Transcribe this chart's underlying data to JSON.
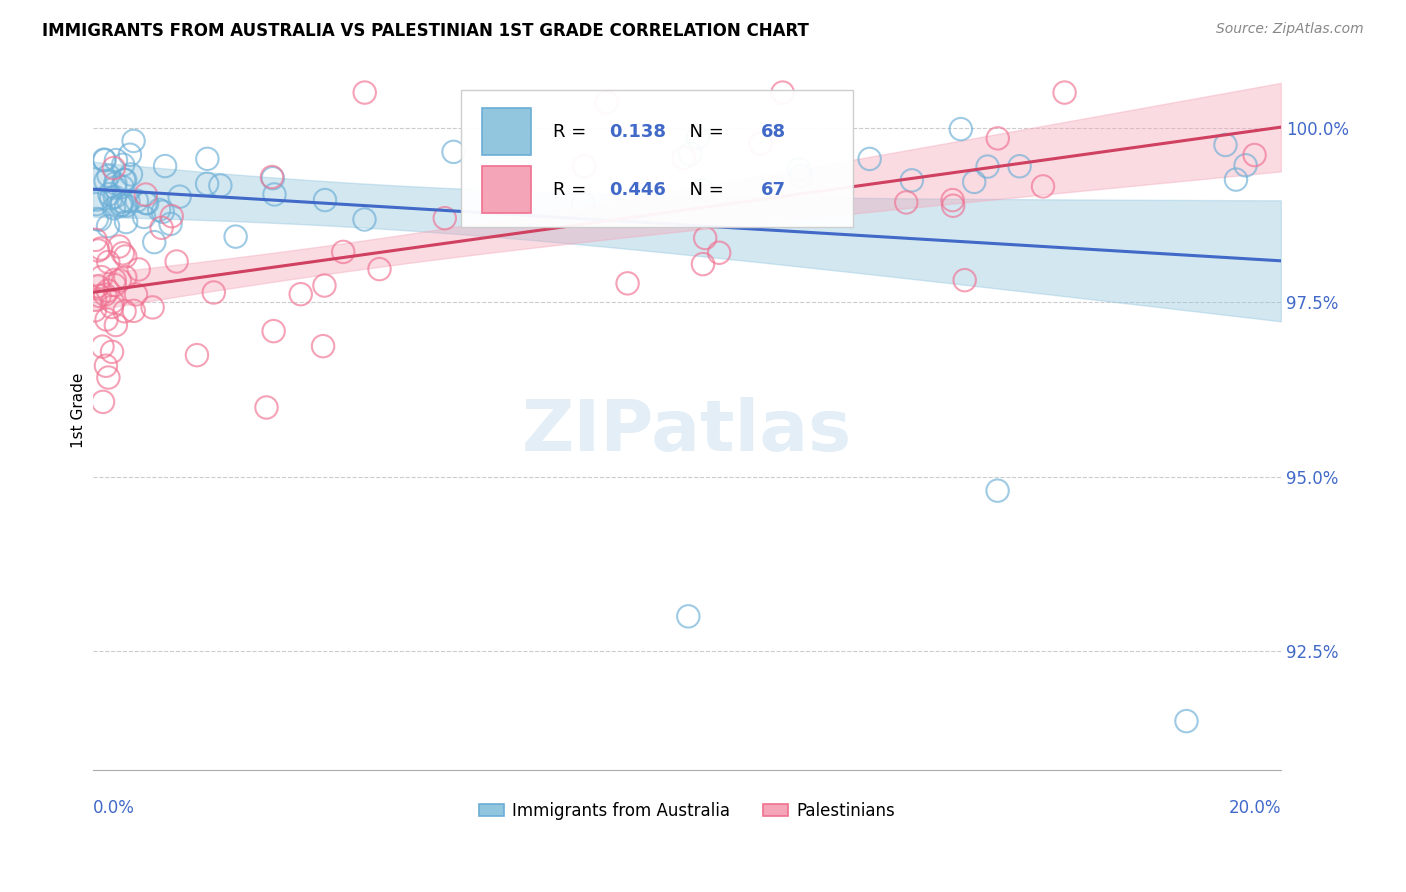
{
  "title": "IMMIGRANTS FROM AUSTRALIA VS PALESTINIAN 1ST GRADE CORRELATION CHART",
  "source_text": "Source: ZipAtlas.com",
  "ylabel": "1st Grade",
  "ytick_values": [
    92.5,
    95.0,
    97.5,
    100.0
  ],
  "xmin": 0.0,
  "xmax": 20.0,
  "ymin": 90.8,
  "ymax": 101.1,
  "legend_label1": "Immigrants from Australia",
  "legend_label2": "Palestinians",
  "R1": "0.138",
  "N1": "68",
  "R2": "0.446",
  "N2": "67",
  "color1": "#92c5de",
  "color2": "#f4a6b8",
  "edge_color1": "#6baed6",
  "edge_color2": "#f07090",
  "trend_color1": "#4169c8",
  "trend_color2": "#d04060",
  "watermark": "ZIPatlas",
  "blue_label_color": "#4169c8"
}
